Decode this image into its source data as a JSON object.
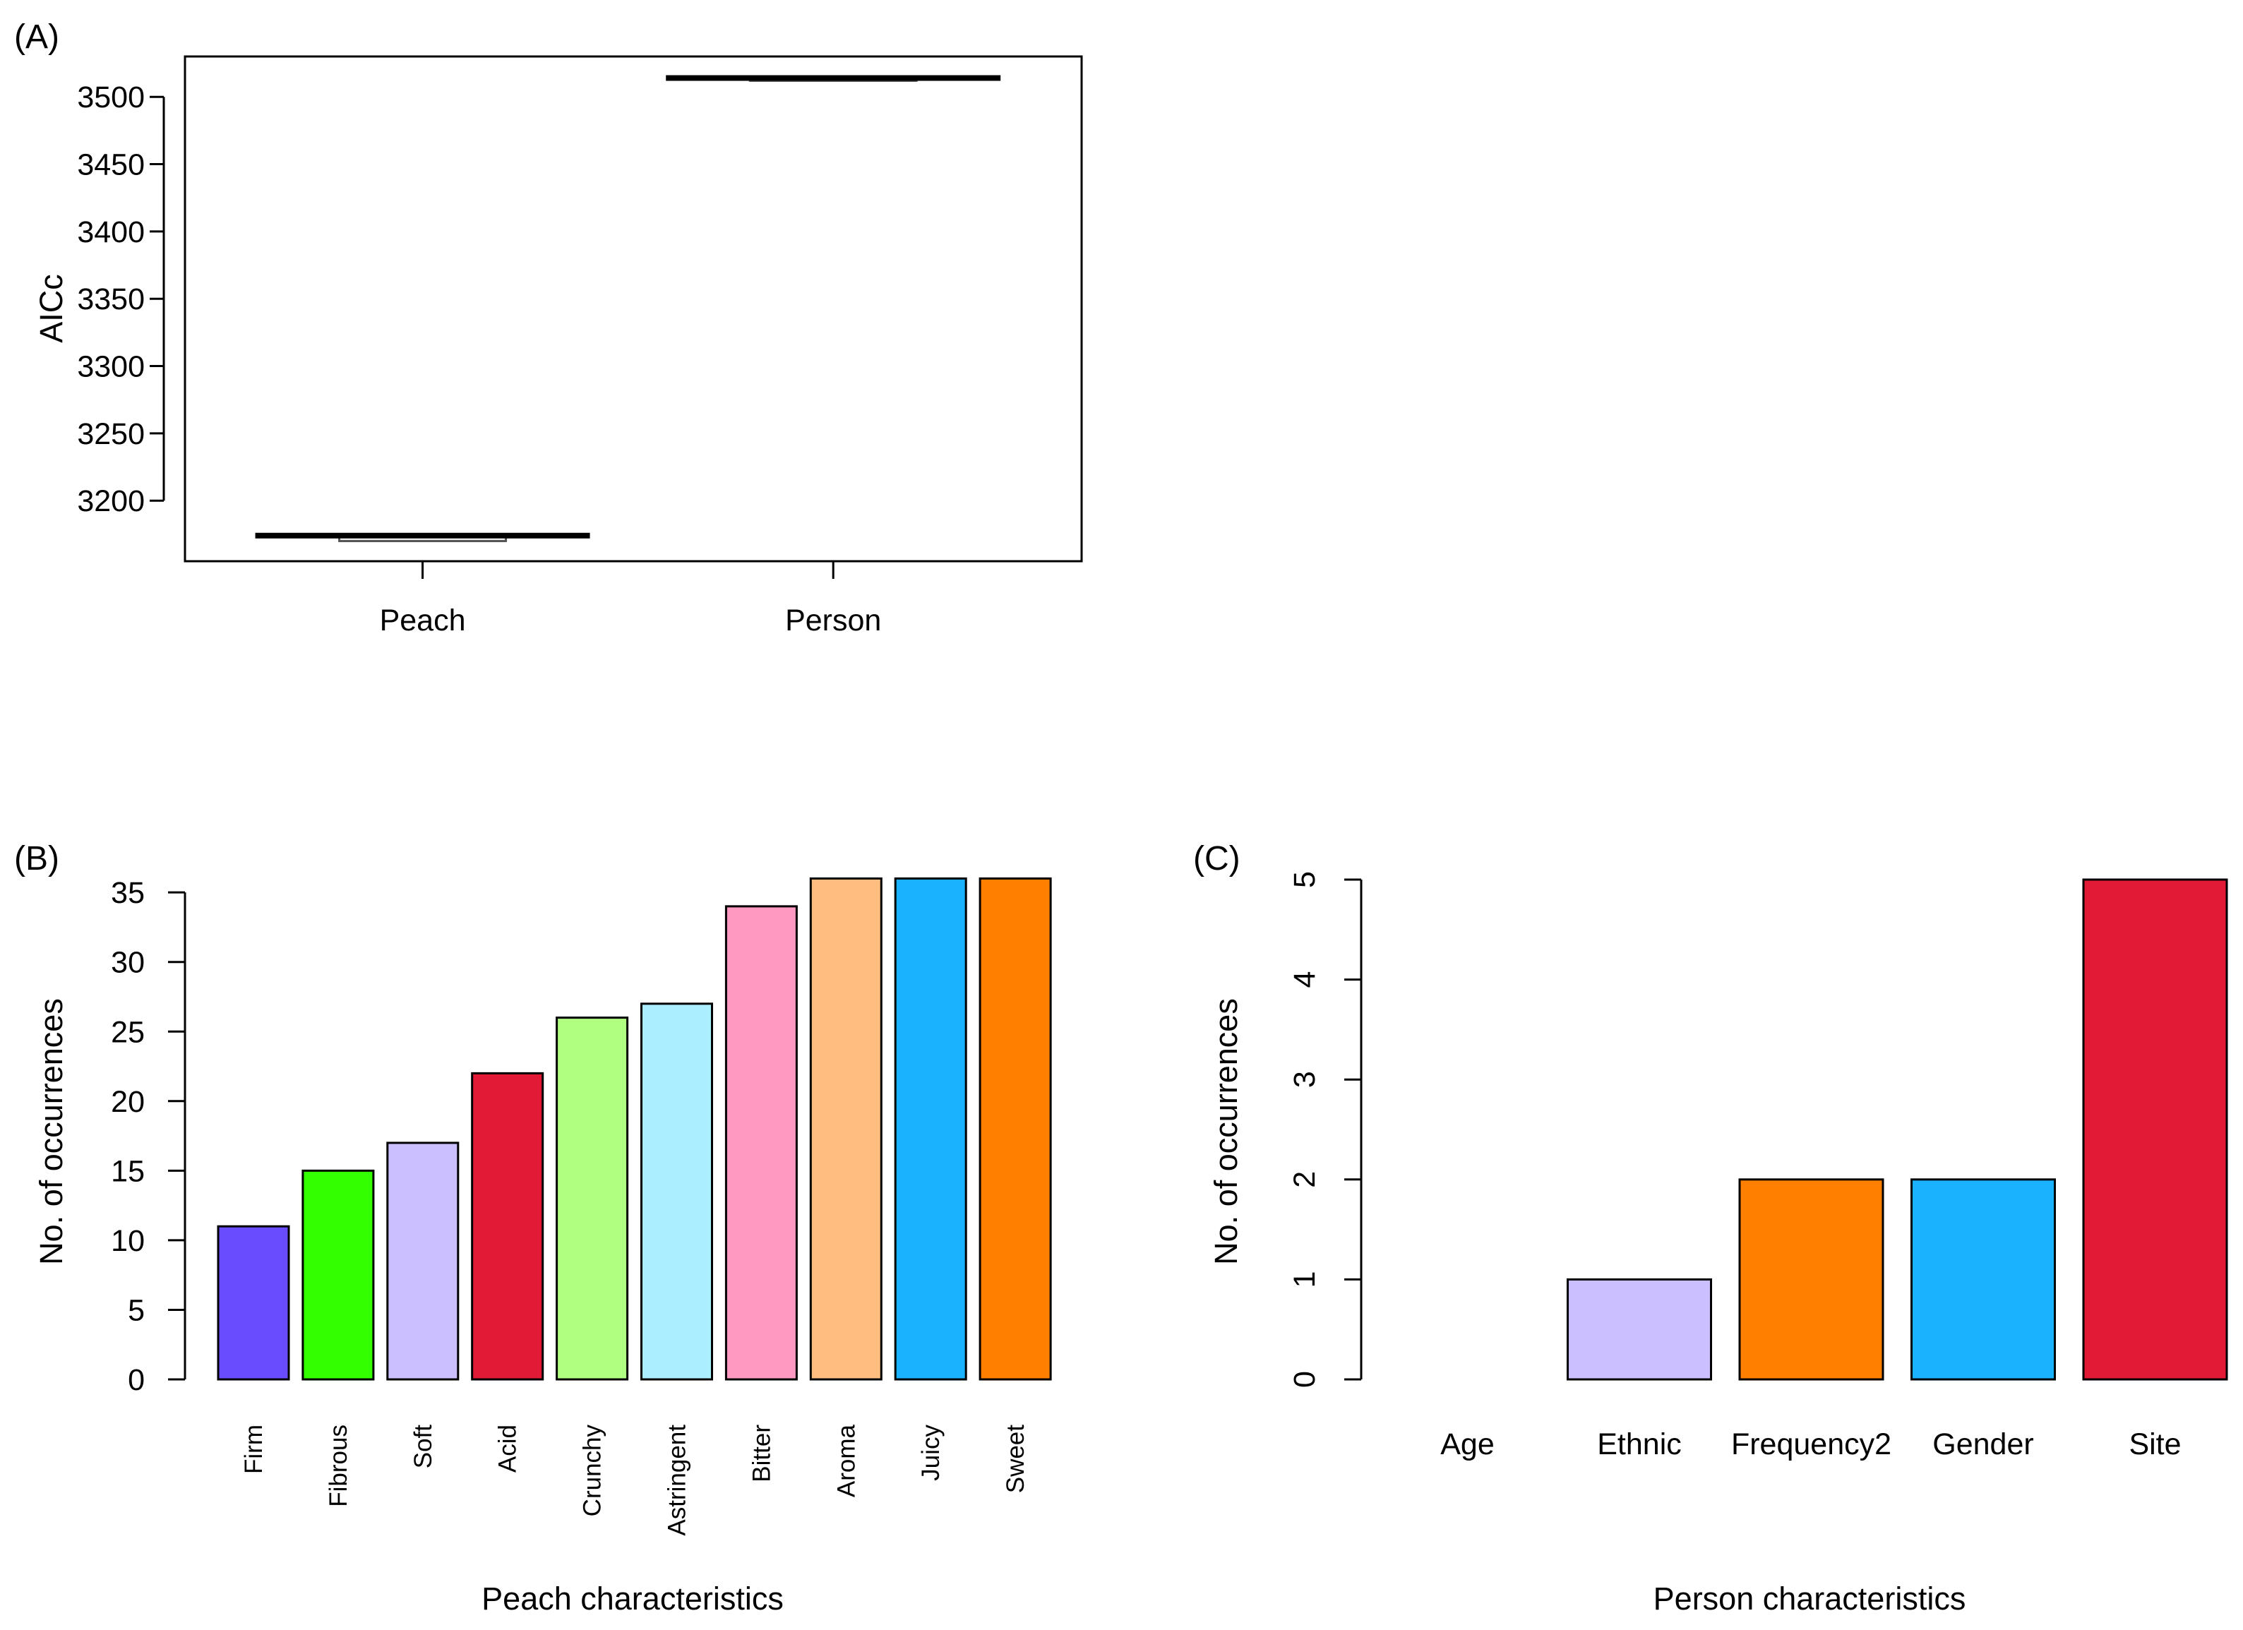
{
  "chart_data": [
    {
      "panel": "(A)",
      "type": "box",
      "title": "",
      "xlabel": "",
      "ylabel": "AICc",
      "yticks": [
        3200,
        3250,
        3300,
        3350,
        3400,
        3450,
        3500
      ],
      "ylim": [
        3155,
        3530
      ],
      "categories": [
        "Peach",
        "Person"
      ],
      "series": [
        {
          "name": "Peach",
          "q1": 3170,
          "median": 3174,
          "q3": 3174
        },
        {
          "name": "Person",
          "q1": 3512,
          "median": 3514,
          "q3": 3515
        }
      ]
    },
    {
      "panel": "(B)",
      "type": "bar",
      "title": "",
      "xlabel": "Peach characteristics",
      "ylabel": "No. of occurrences",
      "yticks": [
        0,
        5,
        10,
        15,
        20,
        25,
        30,
        35
      ],
      "ylim": [
        0,
        36
      ],
      "categories": [
        "Firm",
        "Fibrous",
        "Soft",
        "Acid",
        "Crunchy",
        "Astringent",
        "Bitter",
        "Aroma",
        "Juicy",
        "Sweet"
      ],
      "values": [
        11,
        15,
        17,
        22,
        26,
        27,
        34,
        36,
        36,
        36
      ],
      "colors": [
        "#6a4cff",
        "#33ff00",
        "#cbbfff",
        "#e31a35",
        "#b0ff80",
        "#aaeeff",
        "#ff99c2",
        "#ffbe80",
        "#1ab2ff",
        "#ff8000"
      ]
    },
    {
      "panel": "(C)",
      "type": "bar",
      "title": "",
      "xlabel": "Person characteristics",
      "ylabel": "No. of occurrences",
      "yticks": [
        0,
        1,
        2,
        3,
        4,
        5
      ],
      "ylim": [
        0,
        5
      ],
      "categories": [
        "Age",
        "Ethnic",
        "Frequency2",
        "Gender",
        "Site"
      ],
      "values": [
        0,
        1,
        2,
        2,
        5
      ],
      "colors": [
        "#ffffff",
        "#cbbfff",
        "#ff8000",
        "#1ab2ff",
        "#e31a35"
      ]
    }
  ]
}
